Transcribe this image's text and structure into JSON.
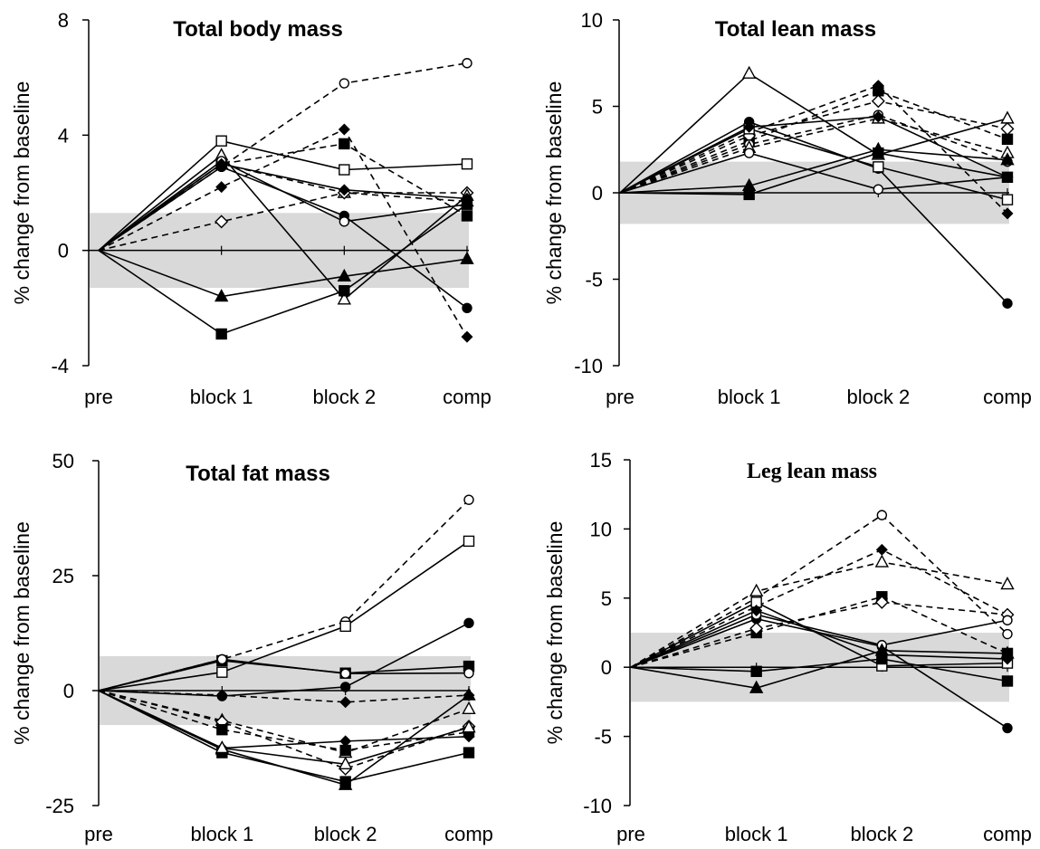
{
  "chart_data": [
    {
      "type": "line",
      "title": "Total body mass",
      "xlabel": "",
      "ylabel": "% change from baseline",
      "categories": [
        "pre",
        "block 1",
        "block 2",
        "comp"
      ],
      "yticks": [
        "8",
        "4",
        "0",
        "-4"
      ],
      "ylim": [
        -4,
        8
      ],
      "band": [
        -1.3,
        1.3
      ],
      "grid": false,
      "series": [
        {
          "marker": "circle-open",
          "dash": true,
          "values": [
            0,
            2.9,
            5.8,
            6.5
          ]
        },
        {
          "marker": "square-open",
          "dash": false,
          "values": [
            0,
            3.8,
            2.8,
            3.0
          ]
        },
        {
          "marker": "diamond-filled",
          "dash": true,
          "values": [
            0,
            2.2,
            4.2,
            -3.0
          ]
        },
        {
          "marker": "square-filled",
          "dash": true,
          "values": [
            0,
            3.0,
            3.7,
            1.2
          ]
        },
        {
          "marker": "triangle-open",
          "dash": true,
          "values": [
            0,
            3.0,
            2.0,
            1.7
          ]
        },
        {
          "marker": "diamond-open",
          "dash": true,
          "values": [
            0,
            1.0,
            2.0,
            2.0
          ]
        },
        {
          "marker": "triangle-open",
          "dash": false,
          "values": [
            0,
            3.3,
            -1.7,
            1.9
          ]
        },
        {
          "marker": "circle-filled",
          "dash": false,
          "values": [
            0,
            2.9,
            1.2,
            -2.0
          ]
        },
        {
          "marker": "circle-open",
          "dash": false,
          "values": [
            0,
            3.1,
            1.0,
            1.6
          ]
        },
        {
          "marker": "diamond-filled",
          "dash": false,
          "values": [
            0,
            3.0,
            2.1,
            1.8
          ]
        },
        {
          "marker": "triangle-filled",
          "dash": false,
          "values": [
            0,
            -1.6,
            -0.9,
            -0.3
          ]
        },
        {
          "marker": "square-filled",
          "dash": false,
          "values": [
            0,
            -2.9,
            -1.4,
            1.6
          ]
        }
      ]
    },
    {
      "type": "line",
      "title": "Total lean mass",
      "xlabel": "",
      "ylabel": "% change from baseline",
      "categories": [
        "pre",
        "block 1",
        "block 2",
        "comp"
      ],
      "yticks": [
        "10",
        "5",
        "0",
        "-5",
        "-10"
      ],
      "ylim": [
        -10,
        10
      ],
      "band": [
        -1.8,
        1.8
      ],
      "grid": false,
      "series": [
        {
          "marker": "triangle-open",
          "dash": false,
          "values": [
            0,
            6.9,
            2.2,
            4.3
          ]
        },
        {
          "marker": "diamond-filled",
          "dash": true,
          "values": [
            0,
            3.5,
            6.2,
            -1.2
          ]
        },
        {
          "marker": "square-filled",
          "dash": true,
          "values": [
            0,
            3.0,
            5.9,
            3.1
          ]
        },
        {
          "marker": "diamond-open",
          "dash": true,
          "values": [
            0,
            3.3,
            5.3,
            3.7
          ]
        },
        {
          "marker": "circle-open",
          "dash": true,
          "values": [
            0,
            2.8,
            4.5,
            1.8
          ]
        },
        {
          "marker": "triangle-open",
          "dash": true,
          "values": [
            0,
            2.6,
            4.3,
            2.3
          ]
        },
        {
          "marker": "circle-filled",
          "dash": false,
          "values": [
            0,
            4.1,
            1.4,
            -6.4
          ]
        },
        {
          "marker": "circle-open",
          "dash": false,
          "values": [
            0,
            2.3,
            0.2,
            0.9
          ]
        },
        {
          "marker": "square-open",
          "dash": false,
          "values": [
            0,
            3.7,
            1.5,
            -0.4
          ]
        },
        {
          "marker": "square-filled",
          "dash": false,
          "values": [
            0,
            -0.1,
            2.3,
            0.9
          ]
        },
        {
          "marker": "triangle-filled",
          "dash": false,
          "values": [
            0,
            0.4,
            2.5,
            1.9
          ]
        },
        {
          "marker": "diamond-filled",
          "dash": false,
          "values": [
            0,
            3.8,
            4.4,
            0.9
          ]
        }
      ]
    },
    {
      "type": "line",
      "title": "Total fat mass",
      "xlabel": "",
      "ylabel": "% change from baseline",
      "categories": [
        "pre",
        "block 1",
        "block 2",
        "comp"
      ],
      "yticks": [
        "50",
        "25",
        "0",
        "-25"
      ],
      "ylim": [
        -25,
        50
      ],
      "band": [
        -7.5,
        7.5
      ],
      "grid": false,
      "series": [
        {
          "marker": "circle-open",
          "dash": true,
          "values": [
            0,
            6.8,
            15.0,
            41.5
          ]
        },
        {
          "marker": "square-open",
          "dash": false,
          "values": [
            0,
            4.0,
            14.0,
            32.5
          ]
        },
        {
          "marker": "circle-filled",
          "dash": false,
          "values": [
            0,
            -1.2,
            0.8,
            14.7
          ]
        },
        {
          "marker": "square-filled",
          "dash": false,
          "values": [
            0,
            6.5,
            3.8,
            5.3
          ]
        },
        {
          "marker": "circle-open",
          "dash": false,
          "values": [
            0,
            6.8,
            3.7,
            3.8
          ]
        },
        {
          "marker": "diamond-filled",
          "dash": true,
          "values": [
            0,
            -1.0,
            -2.5,
            -1.0
          ]
        },
        {
          "marker": "triangle-open",
          "dash": true,
          "values": [
            0,
            -6.5,
            -13.5,
            -4.0
          ]
        },
        {
          "marker": "diamond-open",
          "dash": true,
          "values": [
            0,
            -6.8,
            -17.0,
            -7.8
          ]
        },
        {
          "marker": "diamond-filled",
          "dash": false,
          "values": [
            0,
            -12.5,
            -11.0,
            -10.0
          ]
        },
        {
          "marker": "square-filled",
          "dash": true,
          "values": [
            0,
            -8.5,
            -13.0,
            -9.0
          ]
        },
        {
          "marker": "square-filled",
          "dash": false,
          "values": [
            0,
            -13.5,
            -19.8,
            -13.5
          ]
        },
        {
          "marker": "triangle-filled",
          "dash": false,
          "values": [
            0,
            -12.8,
            -20.5,
            -1.0
          ]
        },
        {
          "marker": "triangle-open",
          "dash": false,
          "values": [
            0,
            -12.5,
            -16.0,
            -8.0
          ]
        }
      ]
    },
    {
      "type": "line",
      "title": "Leg lean mass",
      "xlabel": "",
      "ylabel": "% change from baseline",
      "categories": [
        "pre",
        "block 1",
        "block 2",
        "comp"
      ],
      "yticks": [
        "15",
        "10",
        "5",
        "0",
        "-5",
        "-10"
      ],
      "ylim": [
        -10,
        15
      ],
      "band": [
        -2.5,
        2.5
      ],
      "grid": false,
      "series": [
        {
          "marker": "circle-open",
          "dash": true,
          "values": [
            0,
            5.0,
            11.0,
            2.4
          ]
        },
        {
          "marker": "diamond-filled",
          "dash": true,
          "values": [
            0,
            4.4,
            8.5,
            3.8
          ]
        },
        {
          "marker": "triangle-open",
          "dash": true,
          "values": [
            0,
            5.5,
            7.6,
            6.0
          ]
        },
        {
          "marker": "square-filled",
          "dash": true,
          "values": [
            0,
            2.5,
            5.1,
            1.0
          ]
        },
        {
          "marker": "diamond-open",
          "dash": true,
          "values": [
            0,
            2.8,
            4.7,
            3.8
          ]
        },
        {
          "marker": "square-open",
          "dash": false,
          "values": [
            0,
            4.7,
            0.1,
            0.3
          ]
        },
        {
          "marker": "circle-filled",
          "dash": false,
          "values": [
            0,
            3.5,
            1.5,
            -4.4
          ]
        },
        {
          "marker": "circle-open",
          "dash": false,
          "values": [
            0,
            3.8,
            1.6,
            3.4
          ]
        },
        {
          "marker": "triangle-filled",
          "dash": false,
          "values": [
            0,
            -1.5,
            1.2,
            1.0
          ]
        },
        {
          "marker": "square-filled",
          "dash": false,
          "values": [
            0,
            -0.3,
            0.6,
            -1.0
          ]
        },
        {
          "marker": "diamond-filled",
          "dash": false,
          "values": [
            0,
            4.1,
            0.9,
            0.6
          ]
        }
      ]
    }
  ]
}
